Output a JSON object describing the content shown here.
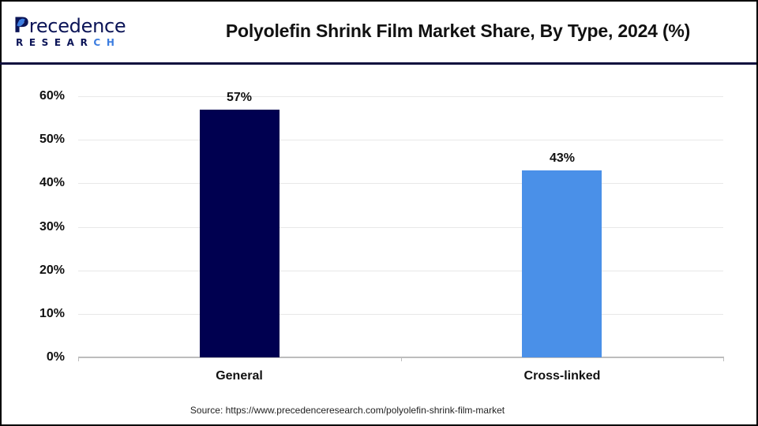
{
  "brand": {
    "logo_first_letter": "P",
    "logo_rest_dark": "recedence",
    "logo_sub_dark": "RESEAR",
    "logo_sub_accent": "CH",
    "colors": {
      "navy": "#0b1457",
      "blue": "#3c7de0"
    }
  },
  "header": {
    "title": "Polyolefin Shrink Film Market Share, By Type, 2024 (%)"
  },
  "footer": {
    "source": "Source: https://www.precedenceresearch.com/polyolefin-shrink-film-market"
  },
  "chart_data": {
    "type": "bar",
    "title": "Polyolefin Shrink Film Market Share, By Type, 2024 (%)",
    "xlabel": "",
    "ylabel": "",
    "categories": [
      "General",
      "Cross-linked"
    ],
    "values": [
      57,
      43
    ],
    "value_labels": [
      "57%",
      "43%"
    ],
    "colors": [
      "#000050",
      "#4a90e8"
    ],
    "ylim": [
      0,
      60
    ],
    "yticks": [
      "0%",
      "10%",
      "20%",
      "30%",
      "40%",
      "50%",
      "60%"
    ],
    "grid": true,
    "legend": null
  }
}
